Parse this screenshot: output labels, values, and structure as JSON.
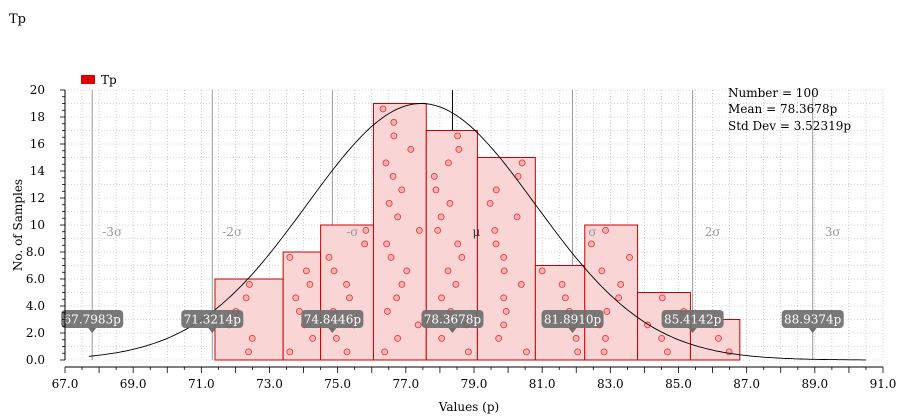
{
  "window_title": "Tp",
  "chart_data": {
    "type": "histogram",
    "title": "Tp",
    "xlabel": "Values (p)",
    "ylabel": "No. of Samples",
    "xlim": [
      67.0,
      91.0
    ],
    "ylim": [
      0,
      20
    ],
    "x_tick_labels": [
      "67.0",
      "69.0",
      "71.0",
      "73.0",
      "75.0",
      "77.0",
      "79.0",
      "81.0",
      "83.0",
      "85.0",
      "87.0",
      "89.0",
      "91.0"
    ],
    "y_tick_labels": [
      "0.0",
      "2.0",
      "4.0",
      "6.0",
      "8.0",
      "10",
      "12",
      "14",
      "16",
      "18",
      "20"
    ],
    "legend": {
      "label": "Tp",
      "color": "#dd0000",
      "position": "top-left"
    },
    "grid": true,
    "bins": [
      {
        "start": 71.4,
        "end": 73.4,
        "count": 6
      },
      {
        "start": 73.4,
        "end": 74.5,
        "count": 8
      },
      {
        "start": 74.5,
        "end": 76.05,
        "count": 10
      },
      {
        "start": 76.05,
        "end": 77.6,
        "count": 19
      },
      {
        "start": 77.6,
        "end": 79.1,
        "count": 17
      },
      {
        "start": 79.1,
        "end": 80.8,
        "count": 15
      },
      {
        "start": 80.8,
        "end": 82.25,
        "count": 7
      },
      {
        "start": 82.25,
        "end": 83.8,
        "count": 10
      },
      {
        "start": 83.8,
        "end": 85.35,
        "count": 5
      },
      {
        "start": 85.35,
        "end": 86.8,
        "count": 3
      }
    ],
    "stats": {
      "number": "Number = 100",
      "mean": "Mean = 78.3678p",
      "std_dev": "Std Dev = 3.52319p"
    },
    "mean": 78.3678,
    "std_dev": 3.52319,
    "sigma_lines": [
      {
        "value": 67.7983,
        "label": "67.7983p",
        "sigma": "-3σ"
      },
      {
        "value": 71.3214,
        "label": "71.3214p",
        "sigma": "-2σ"
      },
      {
        "value": 74.8446,
        "label": "74.8446p",
        "sigma": "-σ"
      },
      {
        "value": 78.3678,
        "label": "78.3678p",
        "sigma": "μ"
      },
      {
        "value": 81.891,
        "label": "81.8910p",
        "sigma": "σ"
      },
      {
        "value": 85.4142,
        "label": "85.4142p",
        "sigma": "2σ"
      },
      {
        "value": 88.9374,
        "label": "88.9374p",
        "sigma": "3σ"
      }
    ],
    "colors": {
      "bar_fill": "#f9d5d5",
      "bar_stroke": "#cc0000",
      "sample_marker": "#e03030",
      "curve": "#000000",
      "sigma_line": "#999999",
      "label_box": "#6e6e6e"
    }
  }
}
